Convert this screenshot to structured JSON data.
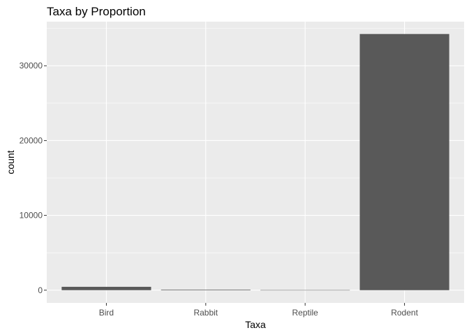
{
  "chart_data": {
    "type": "bar",
    "title": "Taxa by Proportion",
    "xlabel": "Taxa",
    "ylabel": "count",
    "categories": [
      "Bird",
      "Rabbit",
      "Reptile",
      "Rodent"
    ],
    "values": [
      450,
      75,
      14,
      34247
    ],
    "ylim": [
      -1700,
      35900
    ],
    "yticks": [
      0,
      10000,
      20000,
      30000
    ],
    "ytick_labels": [
      "0",
      "10000",
      "20000",
      "30000"
    ],
    "grid": true,
    "legend": "none",
    "colors": {
      "panel_background": "#ebebeb",
      "gridline": "#ffffff",
      "bar_fill": "#595959",
      "tick_label": "#4d4d4d",
      "tick_mark": "#333333",
      "text": "#000000"
    }
  }
}
